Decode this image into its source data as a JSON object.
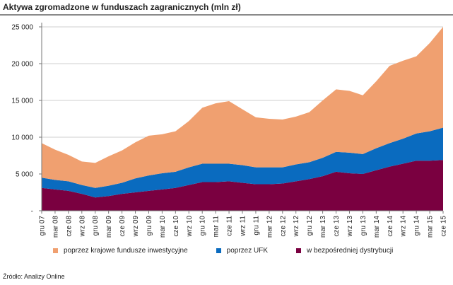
{
  "chart_data": {
    "type": "area",
    "title": "Aktywa zgromadzone w funduszach zagranicznych (mln zł)",
    "categories": [
      "gru 07",
      "mar 08",
      "cze 08",
      "wrz 08",
      "gru 08",
      "mar 09",
      "cze 09",
      "wrz 09",
      "gru 09",
      "mar 10",
      "cze 10",
      "wrz 10",
      "gru 10",
      "mar 11",
      "cze 11",
      "wrz 11",
      "gru 11",
      "mar 12",
      "cze 12",
      "wrz 12",
      "gru 12",
      "mar 13",
      "cze 13",
      "wrz 13",
      "gru 13",
      "mar 14",
      "cze 14",
      "wrz 14",
      "gru 14",
      "mar 15",
      "cze 15"
    ],
    "stacked": true,
    "series": [
      {
        "name": "w bezpośredniej dystrybucji",
        "color": "#7a0040",
        "values": [
          3100,
          2900,
          2700,
          2300,
          1800,
          2000,
          2300,
          2500,
          2700,
          2900,
          3100,
          3500,
          3900,
          3900,
          4000,
          3800,
          3600,
          3600,
          3700,
          4000,
          4300,
          4700,
          5300,
          5100,
          5000,
          5500,
          6000,
          6400,
          6800,
          6800,
          6900
        ]
      },
      {
        "name": "poprzez UFK",
        "color": "#0a6bbf",
        "values": [
          1400,
          1300,
          1300,
          1200,
          1300,
          1400,
          1500,
          1900,
          2100,
          2200,
          2200,
          2400,
          2500,
          2500,
          2400,
          2400,
          2300,
          2300,
          2200,
          2300,
          2300,
          2500,
          2700,
          2800,
          2700,
          3000,
          3200,
          3400,
          3700,
          4000,
          4400
        ]
      },
      {
        "name": "poprzez krajowe fundusze inwestycyjne",
        "color": "#f0a070",
        "values": [
          4700,
          4100,
          3600,
          3200,
          3400,
          4000,
          4400,
          4900,
          5400,
          5300,
          5500,
          6300,
          7600,
          8200,
          8500,
          7600,
          6800,
          6600,
          6500,
          6500,
          6800,
          7800,
          8500,
          8400,
          8000,
          9100,
          10500,
          10600,
          10500,
          12000,
          13700
        ]
      }
    ],
    "ylim": [
      0,
      25000
    ],
    "yticks": [
      "-",
      "5 000",
      "10 000",
      "15 000",
      "20 000",
      "25 000"
    ],
    "grid": true,
    "legend": "bottom"
  },
  "legend": {
    "items": [
      {
        "label": "poprzez krajowe fundusze inwestycyjne",
        "color": "#f0a070"
      },
      {
        "label": "poprzez UFK",
        "color": "#0a6bbf"
      },
      {
        "label": "w bezpośredniej dystrybucji",
        "color": "#7a0040"
      }
    ]
  },
  "source": "Źródło: Analizy Online"
}
